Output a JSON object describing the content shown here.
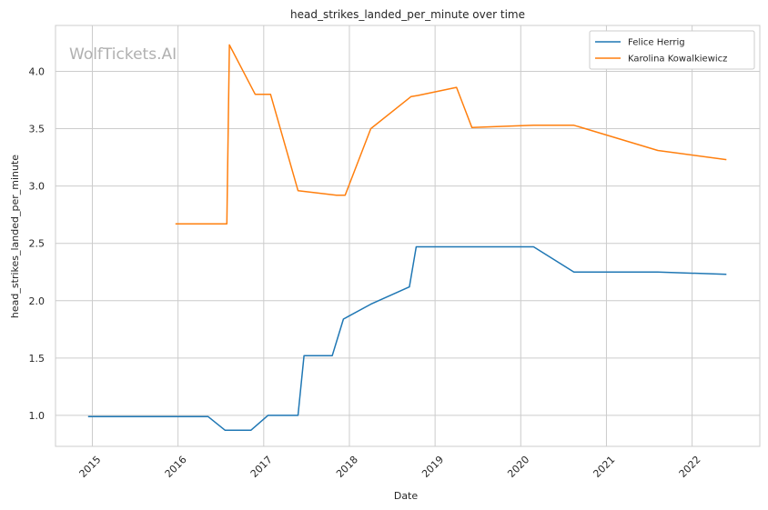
{
  "chart_data": {
    "type": "line",
    "title": "head_strikes_landed_per_minute over time",
    "xlabel": "Date",
    "ylabel": "head_strikes_landed_per_minute",
    "watermark": "WolfTickets.AI",
    "xlim": [
      2014.57,
      2022.79
    ],
    "ylim": [
      0.73,
      4.4
    ],
    "x_ticks": [
      2015,
      2016,
      2017,
      2018,
      2019,
      2020,
      2021,
      2022
    ],
    "x_tick_labels": [
      "2015",
      "2016",
      "2017",
      "2018",
      "2019",
      "2020",
      "2021",
      "2022"
    ],
    "y_ticks": [
      1.0,
      1.5,
      2.0,
      2.5,
      3.0,
      3.5,
      4.0
    ],
    "y_tick_labels": [
      "1.0",
      "1.5",
      "2.0",
      "2.5",
      "3.0",
      "3.5",
      "4.0"
    ],
    "grid": true,
    "legend_position": "top-right",
    "series": [
      {
        "name": "Felice Herrig",
        "color": "#1f77b4",
        "points": [
          [
            2014.95,
            0.99
          ],
          [
            2016.35,
            0.99
          ],
          [
            2016.55,
            0.87
          ],
          [
            2016.85,
            0.87
          ],
          [
            2017.05,
            1.0
          ],
          [
            2017.4,
            1.0
          ],
          [
            2017.47,
            1.52
          ],
          [
            2017.8,
            1.52
          ],
          [
            2017.93,
            1.84
          ],
          [
            2018.25,
            1.97
          ],
          [
            2018.7,
            2.12
          ],
          [
            2018.78,
            2.47
          ],
          [
            2020.15,
            2.47
          ],
          [
            2020.62,
            2.25
          ],
          [
            2021.6,
            2.25
          ],
          [
            2022.4,
            2.23
          ]
        ]
      },
      {
        "name": "Karolina Kowalkiewicz",
        "color": "#ff7f0e",
        "points": [
          [
            2015.97,
            2.67
          ],
          [
            2016.57,
            2.67
          ],
          [
            2016.6,
            4.23
          ],
          [
            2016.9,
            3.8
          ],
          [
            2017.08,
            3.8
          ],
          [
            2017.4,
            2.96
          ],
          [
            2017.85,
            2.92
          ],
          [
            2017.95,
            2.92
          ],
          [
            2018.25,
            3.5
          ],
          [
            2018.72,
            3.78
          ],
          [
            2018.8,
            3.79
          ],
          [
            2019.25,
            3.86
          ],
          [
            2019.43,
            3.51
          ],
          [
            2020.15,
            3.53
          ],
          [
            2020.62,
            3.53
          ],
          [
            2021.6,
            3.31
          ],
          [
            2022.4,
            3.23
          ]
        ]
      }
    ]
  }
}
